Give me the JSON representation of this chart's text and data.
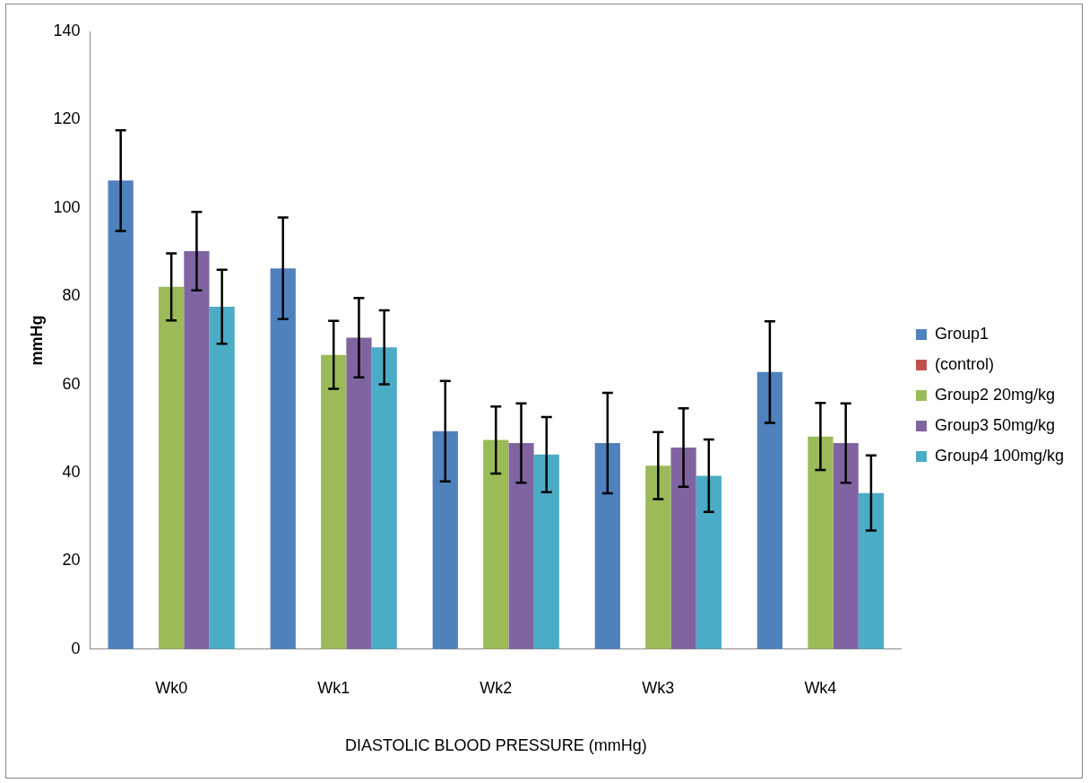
{
  "chart_data": {
    "type": "bar",
    "ylabel": "mmHg",
    "xlabel": "DIASTOLIC BLOOD PRESSURE (mmHg)",
    "categories": [
      "Wk0",
      "Wk1",
      "Wk2",
      "Wk3",
      "Wk4"
    ],
    "series": [
      {
        "name": "Group1",
        "color": "#4f81bd",
        "values": [
          106.2,
          86.3,
          49.4,
          46.7,
          62.8
        ],
        "errors": [
          11.4,
          11.5,
          11.4,
          11.4,
          11.5
        ]
      },
      {
        "name": "(control)",
        "color": "#c0504d",
        "values": [
          null,
          null,
          null,
          null,
          null
        ]
      },
      {
        "name": "Group2 20mg/kg",
        "color": "#9bbb59",
        "values": [
          82.1,
          66.7,
          47.4,
          41.6,
          48.2
        ],
        "errors": [
          7.6,
          7.7,
          7.6,
          7.6,
          7.6
        ]
      },
      {
        "name": "Group3 50mg/kg",
        "color": "#8064a2",
        "values": [
          90.2,
          70.6,
          46.7,
          45.7,
          46.7
        ],
        "errors": [
          8.9,
          9,
          9,
          8.9,
          9
        ]
      },
      {
        "name": "Group4 100mg/kg",
        "color": "#4bacc6",
        "values": [
          77.6,
          68.4,
          44.1,
          39.3,
          35.4
        ],
        "errors": [
          8.4,
          8.4,
          8.5,
          8.2,
          8.5
        ]
      }
    ],
    "ylim": [
      0,
      140
    ],
    "yticks": [
      0,
      20,
      40,
      60,
      80,
      100,
      120,
      140
    ],
    "grid": false,
    "legend": "right"
  }
}
